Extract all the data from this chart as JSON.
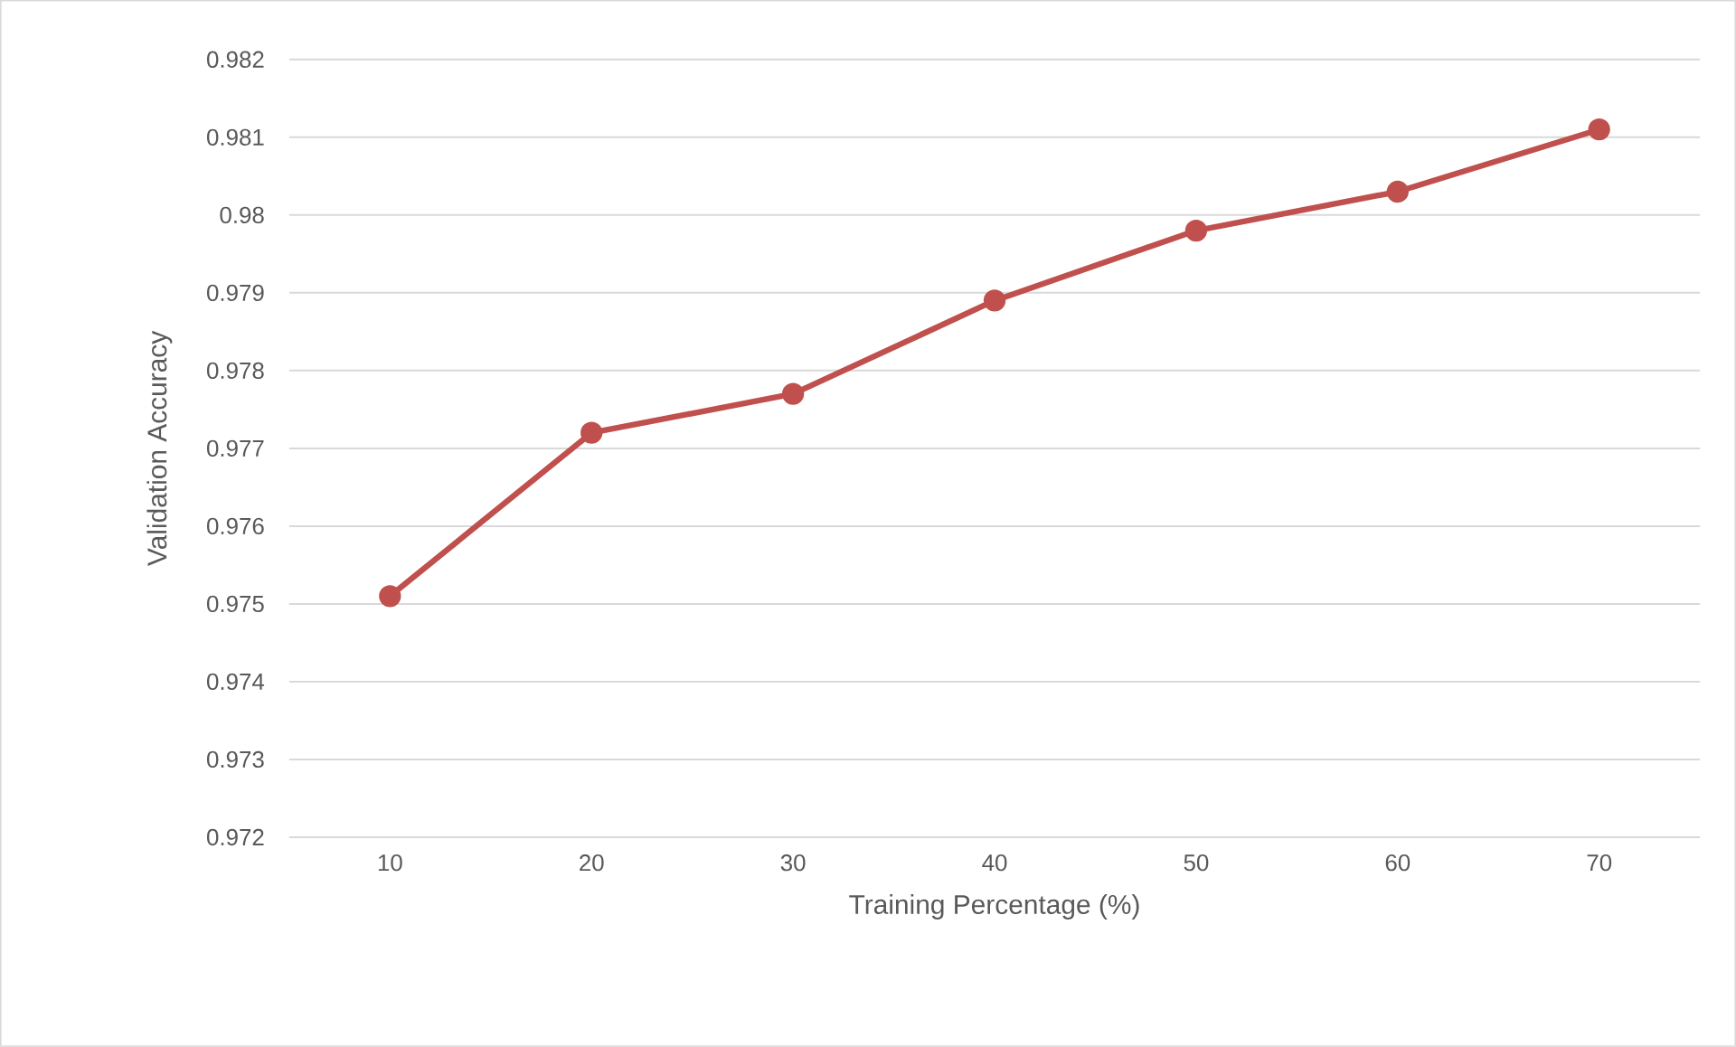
{
  "chart_data": {
    "type": "line",
    "xlabel": "Training Percentage (%)",
    "ylabel": "Validation Accuracy",
    "categories": [
      "10",
      "20",
      "30",
      "40",
      "50",
      "60",
      "70"
    ],
    "series": [
      {
        "color": "#c0504d",
        "values": [
          0.9751,
          0.9772,
          0.9777,
          0.9789,
          0.9798,
          0.9803,
          0.9811
        ]
      }
    ],
    "ylim": [
      0.972,
      0.982
    ],
    "yticks": [
      0.972,
      0.973,
      0.974,
      0.975,
      0.976,
      0.977,
      0.978,
      0.979,
      0.98,
      0.981,
      0.982
    ],
    "grid": "y",
    "marker": "circle",
    "line_style": "solid"
  }
}
